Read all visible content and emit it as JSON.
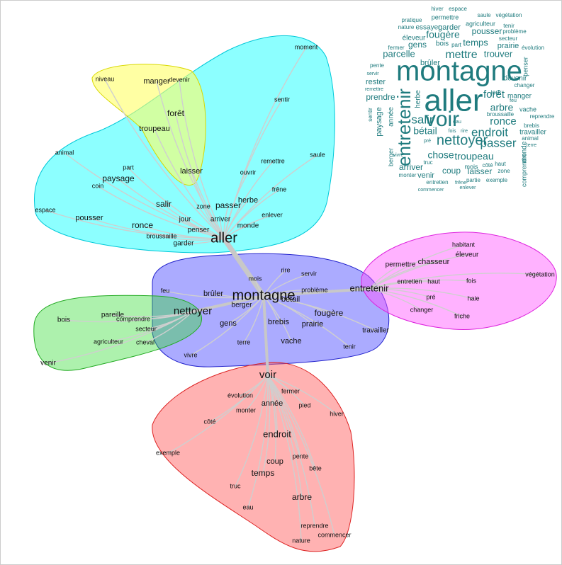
{
  "graph": {
    "clusters": [
      {
        "words": [
          "aller",
          "moment",
          "sentir",
          "animal",
          "part",
          "paysage",
          "coin",
          "ouvrir",
          "remettre",
          "saule",
          "salir",
          "zone",
          "passer",
          "herbe",
          "frêne",
          "espace",
          "pousser",
          "jour",
          "arriver",
          "enlever",
          "ronce",
          "penser",
          "monde",
          "broussaille",
          "garder"
        ]
      },
      {
        "words": [
          "niveau",
          "manger",
          "devenir",
          "forêt",
          "troupeau",
          "laisser"
        ]
      },
      {
        "words": [
          "montagne",
          "mois",
          "rire",
          "servir",
          "feu",
          "brûler",
          "problème",
          "bétail",
          "berger",
          "fougère",
          "gens",
          "brebis",
          "prairie",
          "travailler",
          "terre",
          "vache",
          "tenir",
          "vivre"
        ]
      },
      {
        "words": [
          "nettoyer",
          "bois",
          "pareille",
          "comprendre",
          "secteur",
          "agriculteur",
          "cheval",
          "venir"
        ]
      },
      {
        "words": [
          "entretenir",
          "habitant",
          "éleveur",
          "permettre",
          "chasseur",
          "entretien",
          "haut",
          "fois",
          "végétation",
          "pré",
          "haie",
          "changer",
          "friche"
        ]
      },
      {
        "words": [
          "voir",
          "fermer",
          "évolution",
          "année",
          "pied",
          "monter",
          "hiver",
          "côté",
          "endroit",
          "exemple",
          "pente",
          "coup",
          "bête",
          "temps",
          "truc",
          "arbre",
          "eau",
          "reprendre",
          "commencer",
          "nature"
        ]
      }
    ]
  },
  "word_cloud": {
    "words": [
      "hiver",
      "espace",
      "pratique",
      "permettre",
      "saule",
      "végétation",
      "nature",
      "essayer",
      "garder",
      "agriculteur",
      "tenir",
      "éleveur",
      "gens",
      "fougère",
      "bois",
      "part",
      "temps",
      "pousser",
      "problème",
      "secteur",
      "prairie",
      "évolution",
      "parcelle",
      "mettre",
      "trouver",
      "brûler",
      "montagne",
      "penser",
      "devenir",
      "pente",
      "servir",
      "rester",
      "remettre",
      "changer",
      "aller",
      "entretenir",
      "herbe",
      "forêt",
      "manger",
      "prendre",
      "feu",
      "voir",
      "arbre",
      "vache",
      "salir",
      "nettoyer",
      "endroit",
      "ronce",
      "reprendre",
      "broussaille",
      "paysage",
      "année",
      "sentir",
      "bétail",
      "passer",
      "travailler",
      "brebis",
      "fois",
      "rire",
      "animal",
      "terre",
      "monde",
      "chose",
      "troupeau",
      "arriver",
      "coup",
      "laisser",
      "zone",
      "comprendre",
      "berger",
      "vivre",
      "truc",
      "mois",
      "côté",
      "haut",
      "venir",
      "monter",
      "entretien",
      "frêne",
      "partie",
      "exemple",
      "commencer",
      "enlever",
      "pré",
      "eau",
      "jour",
      "fermer"
    ]
  }
}
